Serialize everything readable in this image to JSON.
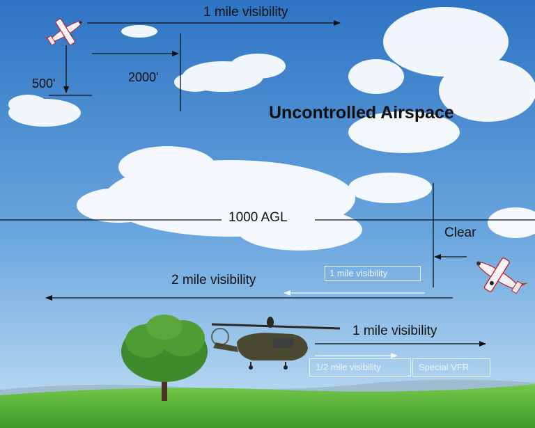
{
  "title": "Uncontrolled Airspace",
  "labels": {
    "top_visibility": "1 mile visibility",
    "below_distance": "500'",
    "horizontal_distance": "2000'",
    "agl_line": "1000 AGL",
    "clear": "Clear",
    "low_visibility": "2 mile visibility",
    "low_visibility_boxed": "1 mile visibility",
    "heli_visibility": "1 mile visibility",
    "heli_half_visibility": "1/2 mile visibility",
    "special_vfr": "Special VFR"
  },
  "colors": {
    "sky_top": "#2f78c8",
    "sky_bottom": "#b8d8f2",
    "grass": "#5fb83a",
    "plane_red": "#c8202a",
    "heli": "#4a4a32",
    "arrow": "#111111",
    "box_border": "#e8f4ff"
  },
  "icons": {
    "plane_high": "airplane-icon",
    "plane_low": "airplane-icon",
    "helicopter": "helicopter-icon",
    "tree": "tree-icon"
  }
}
